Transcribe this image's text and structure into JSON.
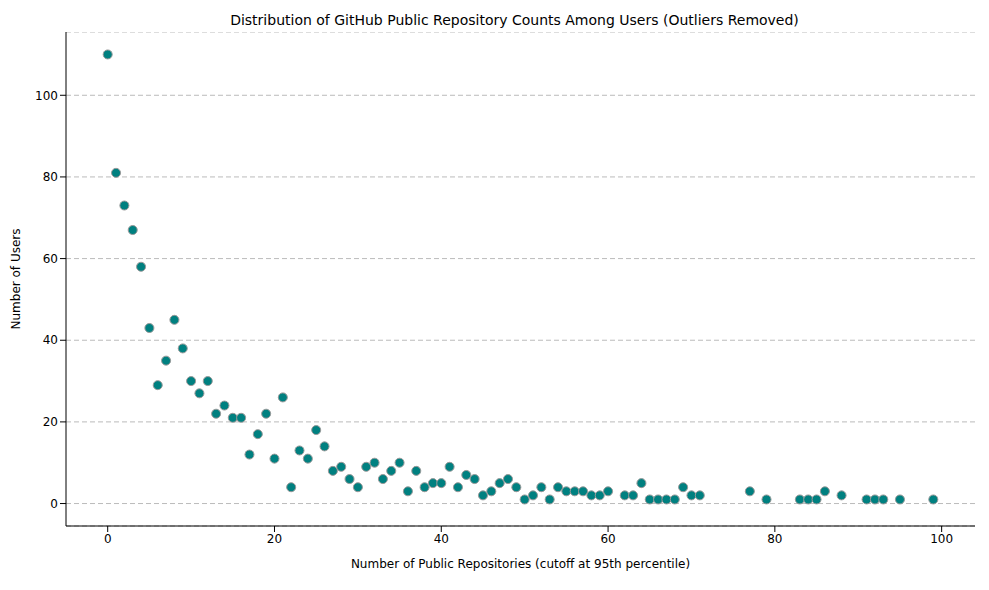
{
  "chart_data": {
    "type": "scatter",
    "title": "Distribution of GitHub Public Repository Counts Among Users (Outliers Removed)",
    "x_label": "Number of Public Repositories (cutoff at 95th percentile)",
    "y_label": "Number of Users",
    "x": [
      0,
      1,
      2,
      3,
      4,
      5,
      6,
      7,
      8,
      9,
      10,
      11,
      12,
      13,
      14,
      15,
      16,
      17,
      18,
      19,
      20,
      21,
      22,
      23,
      24,
      25,
      26,
      27,
      28,
      29,
      30,
      31,
      32,
      33,
      34,
      35,
      36,
      37,
      38,
      39,
      40,
      41,
      42,
      43,
      44,
      45,
      46,
      47,
      48,
      49,
      50,
      51,
      52,
      53,
      54,
      55,
      56,
      57,
      58,
      59,
      60,
      62,
      63,
      64,
      65,
      66,
      67,
      68,
      69,
      70,
      71,
      77,
      79,
      83,
      84,
      85,
      86,
      88,
      91,
      92,
      93,
      95,
      99
    ],
    "values": [
      110,
      81,
      73,
      67,
      58,
      43,
      29,
      35,
      45,
      38,
      30,
      27,
      30,
      22,
      24,
      21,
      21,
      12,
      17,
      22,
      11,
      26,
      4,
      13,
      11,
      18,
      14,
      8,
      9,
      6,
      4,
      9,
      10,
      6,
      8,
      10,
      3,
      8,
      4,
      5,
      5,
      9,
      4,
      7,
      6,
      2,
      3,
      5,
      6,
      4,
      1,
      2,
      4,
      1,
      4,
      3,
      3,
      3,
      2,
      2,
      3,
      2,
      2,
      5,
      1,
      1,
      1,
      1,
      4,
      2,
      2,
      3,
      1,
      1,
      1,
      1,
      3,
      2,
      1,
      1,
      1,
      1,
      1
    ],
    "color": "#008080",
    "marker": "o",
    "xlim": [
      -5,
      104
    ],
    "xticks": [
      0,
      20,
      40,
      60,
      80,
      100
    ],
    "ylim": [
      -5.5,
      115.5
    ],
    "yticks": [
      0,
      20,
      40,
      60,
      80,
      100
    ],
    "grid": "y"
  }
}
